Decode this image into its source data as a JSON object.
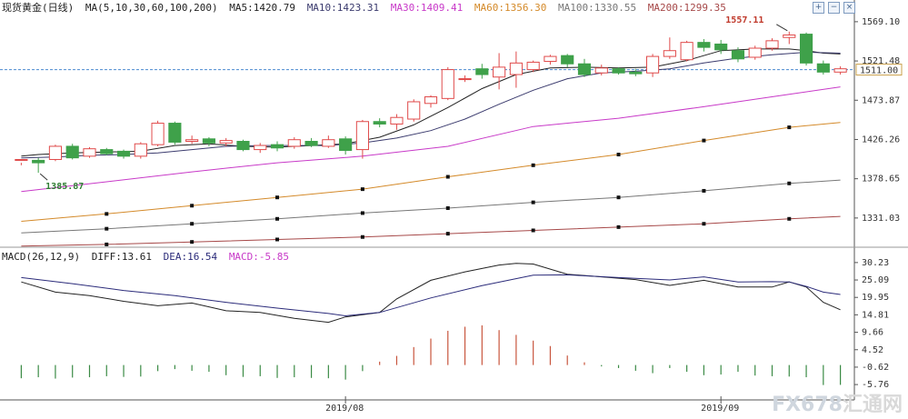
{
  "header_main": {
    "symbol": "现货黄金(日线)",
    "ma_def": "MA(5,10,30,60,100,200)",
    "ma5": "MA5:1420.79",
    "ma10": "MA10:1423.31",
    "ma30": "MA30:1409.41",
    "ma60": "MA60:1356.30",
    "ma100": "MA100:1330.55",
    "ma200": "MA200:1299.35"
  },
  "header_macd": {
    "def": "MACD(26,12,9)",
    "diff": "DIFF:13.61",
    "dea": "DEA:16.54",
    "macd": "MACD:-5.85"
  },
  "colors": {
    "up": "#e04a4a",
    "down": "#3fa14a",
    "ma5": "#222222",
    "ma10": "#3b3b6e",
    "ma30": "#c83ac8",
    "ma60": "#d48a2a",
    "ma100": "#777777",
    "ma200": "#a64848",
    "diff": "#222222",
    "dea": "#2b2b7a",
    "macd_pos": "#c8553d",
    "macd_neg": "#3a8a44",
    "axis": "#444444",
    "price_line": "#4a8ad0"
  },
  "annotations": {
    "high": "1557.11",
    "low": "1385.87",
    "current_price": "1511.00"
  },
  "logo": {
    "fx": "FX678",
    "cn": "汇通网"
  },
  "chart_data": [
    {
      "type": "candlestick",
      "title": "现货黄金(日线)",
      "x_labels": [
        "2019/08",
        "2019/09"
      ],
      "y_ticks": [
        1569.1,
        1521.48,
        1473.87,
        1426.26,
        1378.65,
        1331.03
      ],
      "ylim": [
        1300,
        1580
      ],
      "candles": [
        [
          1402,
          1402,
          1398,
          1395
        ],
        [
          1401,
          1398,
          1404,
          1385.87
        ],
        [
          1402,
          1418,
          1420,
          1400
        ],
        [
          1418,
          1404,
          1421,
          1402
        ],
        [
          1406,
          1415,
          1417,
          1404
        ],
        [
          1414,
          1409,
          1416,
          1407
        ],
        [
          1412,
          1406,
          1414,
          1403
        ],
        [
          1406,
          1421,
          1423,
          1403
        ],
        [
          1420,
          1446,
          1449,
          1418
        ],
        [
          1446,
          1423,
          1448,
          1420
        ],
        [
          1424,
          1426,
          1431,
          1421
        ],
        [
          1427,
          1422,
          1429,
          1418
        ],
        [
          1422,
          1425,
          1428,
          1418
        ],
        [
          1424,
          1414,
          1426,
          1412
        ],
        [
          1414,
          1419,
          1422,
          1410
        ],
        [
          1420,
          1416,
          1424,
          1412
        ],
        [
          1418,
          1426,
          1429,
          1415
        ],
        [
          1424,
          1419,
          1428,
          1417
        ],
        [
          1418,
          1426,
          1431,
          1416
        ],
        [
          1427,
          1413,
          1430,
          1408
        ],
        [
          1414,
          1448,
          1450,
          1403
        ],
        [
          1448,
          1445,
          1452,
          1441
        ],
        [
          1445,
          1453,
          1457,
          1438
        ],
        [
          1451,
          1472,
          1475,
          1448
        ],
        [
          1470,
          1478,
          1480,
          1465
        ],
        [
          1476,
          1511,
          1514,
          1474
        ],
        [
          1500,
          1500,
          1504,
          1496
        ],
        [
          1512,
          1505,
          1518,
          1500
        ],
        [
          1502,
          1514,
          1531,
          1487
        ],
        [
          1505,
          1519,
          1533,
          1489
        ],
        [
          1511,
          1520,
          1522,
          1508
        ],
        [
          1521,
          1527,
          1529,
          1517
        ],
        [
          1528,
          1518,
          1530,
          1514
        ],
        [
          1518,
          1505,
          1524,
          1502
        ],
        [
          1507,
          1513,
          1517,
          1504
        ],
        [
          1512,
          1507,
          1514,
          1505
        ],
        [
          1508,
          1506,
          1512,
          1503
        ],
        [
          1507,
          1527,
          1530,
          1502
        ],
        [
          1527,
          1534,
          1550,
          1524
        ],
        [
          1523,
          1544,
          1546,
          1521
        ],
        [
          1544,
          1538,
          1548,
          1533
        ],
        [
          1542,
          1535,
          1547,
          1530
        ],
        [
          1534,
          1524,
          1538,
          1520
        ],
        [
          1526,
          1537,
          1540,
          1523
        ],
        [
          1537,
          1546,
          1549,
          1534
        ],
        [
          1550,
          1553,
          1557.11,
          1542
        ],
        [
          1554,
          1519,
          1556,
          1516
        ],
        [
          1518,
          1508,
          1522,
          1505
        ],
        [
          1508,
          1512,
          1515,
          1505
        ]
      ],
      "ma_lines": {
        "MA5": [
          [
            0,
            1406
          ],
          [
            1,
            1408
          ],
          [
            3,
            1410
          ],
          [
            5,
            1411
          ],
          [
            7,
            1412
          ],
          [
            9,
            1419
          ],
          [
            11,
            1421
          ],
          [
            13,
            1418
          ],
          [
            15,
            1417
          ],
          [
            17,
            1419
          ],
          [
            19,
            1421
          ],
          [
            21,
            1429
          ],
          [
            23,
            1444
          ],
          [
            25,
            1465
          ],
          [
            27,
            1488
          ],
          [
            29,
            1505
          ],
          [
            31,
            1513
          ],
          [
            33,
            1514
          ],
          [
            35,
            1513
          ],
          [
            37,
            1514
          ],
          [
            39,
            1522
          ],
          [
            41,
            1534
          ],
          [
            43,
            1536
          ],
          [
            45,
            1536
          ],
          [
            46,
            1534
          ],
          [
            47,
            1531
          ],
          [
            48,
            1530
          ]
        ],
        "MA10": [
          [
            0,
            1404
          ],
          [
            2,
            1405
          ],
          [
            4,
            1407
          ],
          [
            6,
            1408
          ],
          [
            8,
            1410
          ],
          [
            10,
            1414
          ],
          [
            12,
            1418
          ],
          [
            14,
            1419
          ],
          [
            16,
            1419
          ],
          [
            18,
            1419
          ],
          [
            20,
            1422
          ],
          [
            22,
            1428
          ],
          [
            24,
            1437
          ],
          [
            26,
            1451
          ],
          [
            28,
            1469
          ],
          [
            30,
            1486
          ],
          [
            32,
            1500
          ],
          [
            34,
            1507
          ],
          [
            36,
            1509
          ],
          [
            38,
            1512
          ],
          [
            40,
            1519
          ],
          [
            42,
            1525
          ],
          [
            44,
            1529
          ],
          [
            46,
            1532
          ],
          [
            48,
            1531
          ]
        ],
        "MA30": [
          [
            0,
            1363
          ],
          [
            5,
            1375
          ],
          [
            10,
            1387
          ],
          [
            15,
            1398
          ],
          [
            20,
            1406
          ],
          [
            25,
            1418
          ],
          [
            30,
            1442
          ],
          [
            35,
            1452
          ],
          [
            40,
            1466
          ],
          [
            45,
            1481
          ],
          [
            48,
            1490
          ]
        ],
        "MA60": [
          [
            0,
            1327
          ],
          [
            5,
            1336
          ],
          [
            10,
            1346
          ],
          [
            15,
            1356
          ],
          [
            20,
            1366
          ],
          [
            25,
            1381
          ],
          [
            30,
            1395
          ],
          [
            35,
            1408
          ],
          [
            40,
            1425
          ],
          [
            45,
            1441
          ],
          [
            48,
            1447
          ]
        ],
        "MA100": [
          [
            0,
            1313
          ],
          [
            5,
            1318
          ],
          [
            10,
            1324
          ],
          [
            15,
            1330
          ],
          [
            20,
            1337
          ],
          [
            25,
            1343
          ],
          [
            30,
            1350
          ],
          [
            35,
            1356
          ],
          [
            40,
            1364
          ],
          [
            45,
            1373
          ],
          [
            48,
            1377
          ]
        ],
        "MA200": [
          [
            0,
            1297
          ],
          [
            5,
            1299
          ],
          [
            10,
            1302
          ],
          [
            15,
            1305
          ],
          [
            20,
            1308
          ],
          [
            25,
            1312
          ],
          [
            30,
            1316
          ],
          [
            35,
            1320
          ],
          [
            40,
            1324
          ],
          [
            45,
            1330
          ],
          [
            48,
            1333
          ]
        ]
      },
      "ma_markers": {
        "MA60": [
          5,
          10,
          15,
          20,
          25,
          30,
          35,
          40,
          45
        ],
        "MA100": [
          5,
          10,
          15,
          20,
          25,
          30,
          35,
          40,
          45
        ],
        "MA200": [
          5,
          10,
          15,
          20,
          25,
          30,
          35,
          40,
          45
        ]
      }
    },
    {
      "type": "line+bar",
      "title": "MACD(26,12,9)",
      "y_ticks": [
        30.23,
        25.09,
        19.95,
        14.81,
        9.66,
        4.52,
        -0.62,
        -5.76
      ],
      "ylim": [
        -6,
        31
      ],
      "diff": [
        [
          0,
          24.5
        ],
        [
          2,
          21.5
        ],
        [
          4,
          20.5
        ],
        [
          6,
          18.8
        ],
        [
          8,
          17.5
        ],
        [
          10,
          18.3
        ],
        [
          12,
          16.0
        ],
        [
          14,
          15.5
        ],
        [
          16,
          13.8
        ],
        [
          18,
          12.6
        ],
        [
          19,
          14.2
        ],
        [
          21,
          15.5
        ],
        [
          22,
          19.5
        ],
        [
          24,
          25.0
        ],
        [
          26,
          27.5
        ],
        [
          28,
          29.5
        ],
        [
          29,
          30.0
        ],
        [
          30,
          29.8
        ],
        [
          32,
          26.8
        ],
        [
          34,
          26.0
        ],
        [
          36,
          25.2
        ],
        [
          38,
          23.5
        ],
        [
          40,
          25.0
        ],
        [
          42,
          23.0
        ],
        [
          44,
          23.0
        ],
        [
          45,
          24.5
        ],
        [
          46,
          23.0
        ],
        [
          47,
          18.5
        ],
        [
          48,
          16.3
        ]
      ],
      "dea": [
        [
          0,
          25.8
        ],
        [
          3,
          24.0
        ],
        [
          6,
          22.0
        ],
        [
          9,
          20.5
        ],
        [
          12,
          18.5
        ],
        [
          15,
          16.8
        ],
        [
          18,
          15.2
        ],
        [
          19,
          14.5
        ],
        [
          21,
          15.5
        ],
        [
          24,
          19.8
        ],
        [
          27,
          23.4
        ],
        [
          30,
          26.5
        ],
        [
          32,
          26.6
        ],
        [
          35,
          25.8
        ],
        [
          38,
          25.1
        ],
        [
          40,
          26.0
        ],
        [
          42,
          24.5
        ],
        [
          44,
          24.6
        ],
        [
          45,
          24.5
        ],
        [
          46,
          23.2
        ],
        [
          47,
          21.5
        ],
        [
          48,
          20.8
        ]
      ],
      "macd": [
        -3.9,
        -3.6,
        -4.0,
        -3.7,
        -3.6,
        -3.3,
        -3.5,
        -3.4,
        -1.8,
        -1.2,
        -1.7,
        -2.0,
        -3.0,
        -3.5,
        -3.3,
        -3.8,
        -3.6,
        -3.8,
        -3.9,
        -4.3,
        -1.8,
        1.0,
        2.7,
        5.3,
        7.8,
        10.1,
        11.3,
        11.7,
        10.3,
        8.9,
        7.2,
        5.6,
        2.8,
        0.8,
        -0.4,
        -0.9,
        -1.7,
        -2.4,
        -0.9,
        -2.0,
        -3.0,
        -2.8,
        -2.0,
        -3.1,
        -3.3,
        -3.4,
        -3.6,
        -5.9,
        -5.85
      ]
    }
  ]
}
